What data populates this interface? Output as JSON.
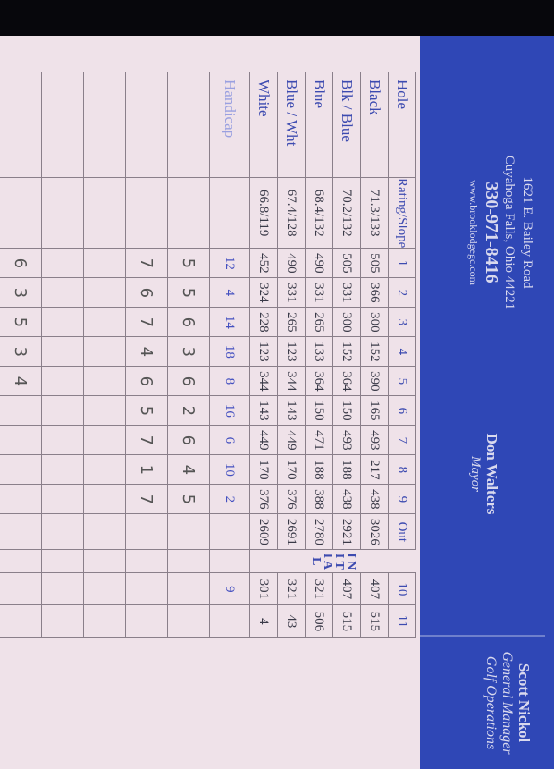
{
  "header": {
    "address_line1": "1621 E. Bailey Road",
    "address_line2": "Cuyahoga Falls, Ohio 44221",
    "phone": "330-971-8416",
    "website": "www.brooklodgegc.com",
    "mayor_name": "Don Walters",
    "mayor_title": "Mayor",
    "gm_name": "Scott Nickol",
    "gm_title1": "General Manager",
    "gm_title2": "Golf Operations"
  },
  "scorecard": {
    "hole_label": "Hole",
    "rating_label": "Rating/Slope",
    "holes": [
      "1",
      "2",
      "3",
      "4",
      "5",
      "6",
      "7",
      "8",
      "9",
      "Out",
      "",
      "10",
      "11"
    ],
    "initial_letters": "I N I T I A L",
    "tees": [
      {
        "name": "Black",
        "rating": "71.3/133",
        "yards": [
          "505",
          "366",
          "300",
          "152",
          "390",
          "165",
          "493",
          "217",
          "438",
          "3026",
          "",
          "407",
          "515"
        ]
      },
      {
        "name": "Blk / Blue",
        "rating": "70.2/132",
        "yards": [
          "505",
          "331",
          "300",
          "152",
          "364",
          "150",
          "493",
          "188",
          "438",
          "2921",
          "",
          "407",
          "515"
        ]
      },
      {
        "name": "Blue",
        "rating": "68.4/132",
        "yards": [
          "490",
          "331",
          "265",
          "133",
          "364",
          "150",
          "471",
          "188",
          "388",
          "2780",
          "",
          "321",
          "506"
        ]
      },
      {
        "name": "Blue / Wht",
        "rating": "67.4/128",
        "yards": [
          "490",
          "331",
          "265",
          "123",
          "344",
          "143",
          "449",
          "170",
          "376",
          "2691",
          "",
          "321",
          "43"
        ]
      },
      {
        "name": "White",
        "rating": "66.8/119",
        "yards": [
          "452",
          "324",
          "228",
          "123",
          "344",
          "143",
          "449",
          "170",
          "376",
          "2609",
          "",
          "301",
          "4"
        ]
      }
    ],
    "handicap_label": "Handicap",
    "handicap": [
      "12",
      "4",
      "14",
      "18",
      "8",
      "16",
      "6",
      "10",
      "2",
      "",
      "",
      "9",
      ""
    ],
    "score_rows": [
      [
        "5",
        "5",
        "6",
        "3",
        "6",
        "2",
        "6",
        "4",
        "5",
        "",
        "",
        "",
        ""
      ],
      [
        "7",
        "6",
        "7",
        "4",
        "6",
        "5",
        "7",
        "1",
        "7",
        "",
        "",
        "",
        ""
      ],
      [
        "",
        "",
        "",
        "",
        "",
        "",
        "",
        "",
        "",
        "",
        "",
        "",
        ""
      ],
      [
        "",
        "",
        "",
        "",
        "",
        "",
        "",
        "",
        "",
        "",
        "",
        "",
        ""
      ],
      [
        "6",
        "3",
        "5",
        "3",
        "4",
        "",
        "",
        "",
        "",
        "",
        "",
        "",
        ""
      ]
    ]
  }
}
